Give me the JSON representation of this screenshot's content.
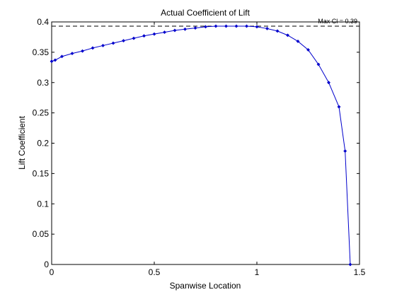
{
  "chart_data": {
    "type": "line",
    "title": "Actual Coefficient of Lift",
    "xlabel": "Spanwise Location",
    "ylabel": "Lift Coefficient",
    "xlim": [
      0,
      1.5
    ],
    "ylim": [
      0,
      0.4
    ],
    "xticks": [
      {
        "value": 0,
        "label": "0"
      },
      {
        "value": 0.5,
        "label": "0.5"
      },
      {
        "value": 1,
        "label": "1"
      },
      {
        "value": 1.5,
        "label": "1.5"
      }
    ],
    "yticks": [
      {
        "value": 0,
        "label": "0"
      },
      {
        "value": 0.05,
        "label": "0.05"
      },
      {
        "value": 0.1,
        "label": "0.1"
      },
      {
        "value": 0.15,
        "label": "0.15"
      },
      {
        "value": 0.2,
        "label": "0.2"
      },
      {
        "value": 0.25,
        "label": "0.25"
      },
      {
        "value": 0.3,
        "label": "0.3"
      },
      {
        "value": 0.35,
        "label": "0.35"
      },
      {
        "value": 0.4,
        "label": "0.4"
      }
    ],
    "grid": false,
    "line_color": "#0000cc",
    "reference_line": {
      "y": 0.393,
      "style": "dashed",
      "color": "#000000",
      "label": "Max Cl = 0.39"
    },
    "series": [
      {
        "markers": true,
        "x": [
          0,
          0.017,
          0.05,
          0.1,
          0.15,
          0.2,
          0.25,
          0.3,
          0.35,
          0.4,
          0.45,
          0.5,
          0.55,
          0.6,
          0.65,
          0.7,
          0.75,
          0.8,
          0.85,
          0.9,
          0.95,
          1.0,
          1.05,
          1.1,
          1.15,
          1.2,
          1.25,
          1.3,
          1.35,
          1.4,
          1.43,
          1.455
        ],
        "y": [
          0.335,
          0.337,
          0.343,
          0.348,
          0.352,
          0.357,
          0.361,
          0.365,
          0.369,
          0.373,
          0.377,
          0.38,
          0.383,
          0.386,
          0.388,
          0.39,
          0.392,
          0.393,
          0.393,
          0.393,
          0.393,
          0.392,
          0.389,
          0.385,
          0.378,
          0.368,
          0.354,
          0.33,
          0.3,
          0.26,
          0.187,
          0.0
        ]
      }
    ]
  }
}
